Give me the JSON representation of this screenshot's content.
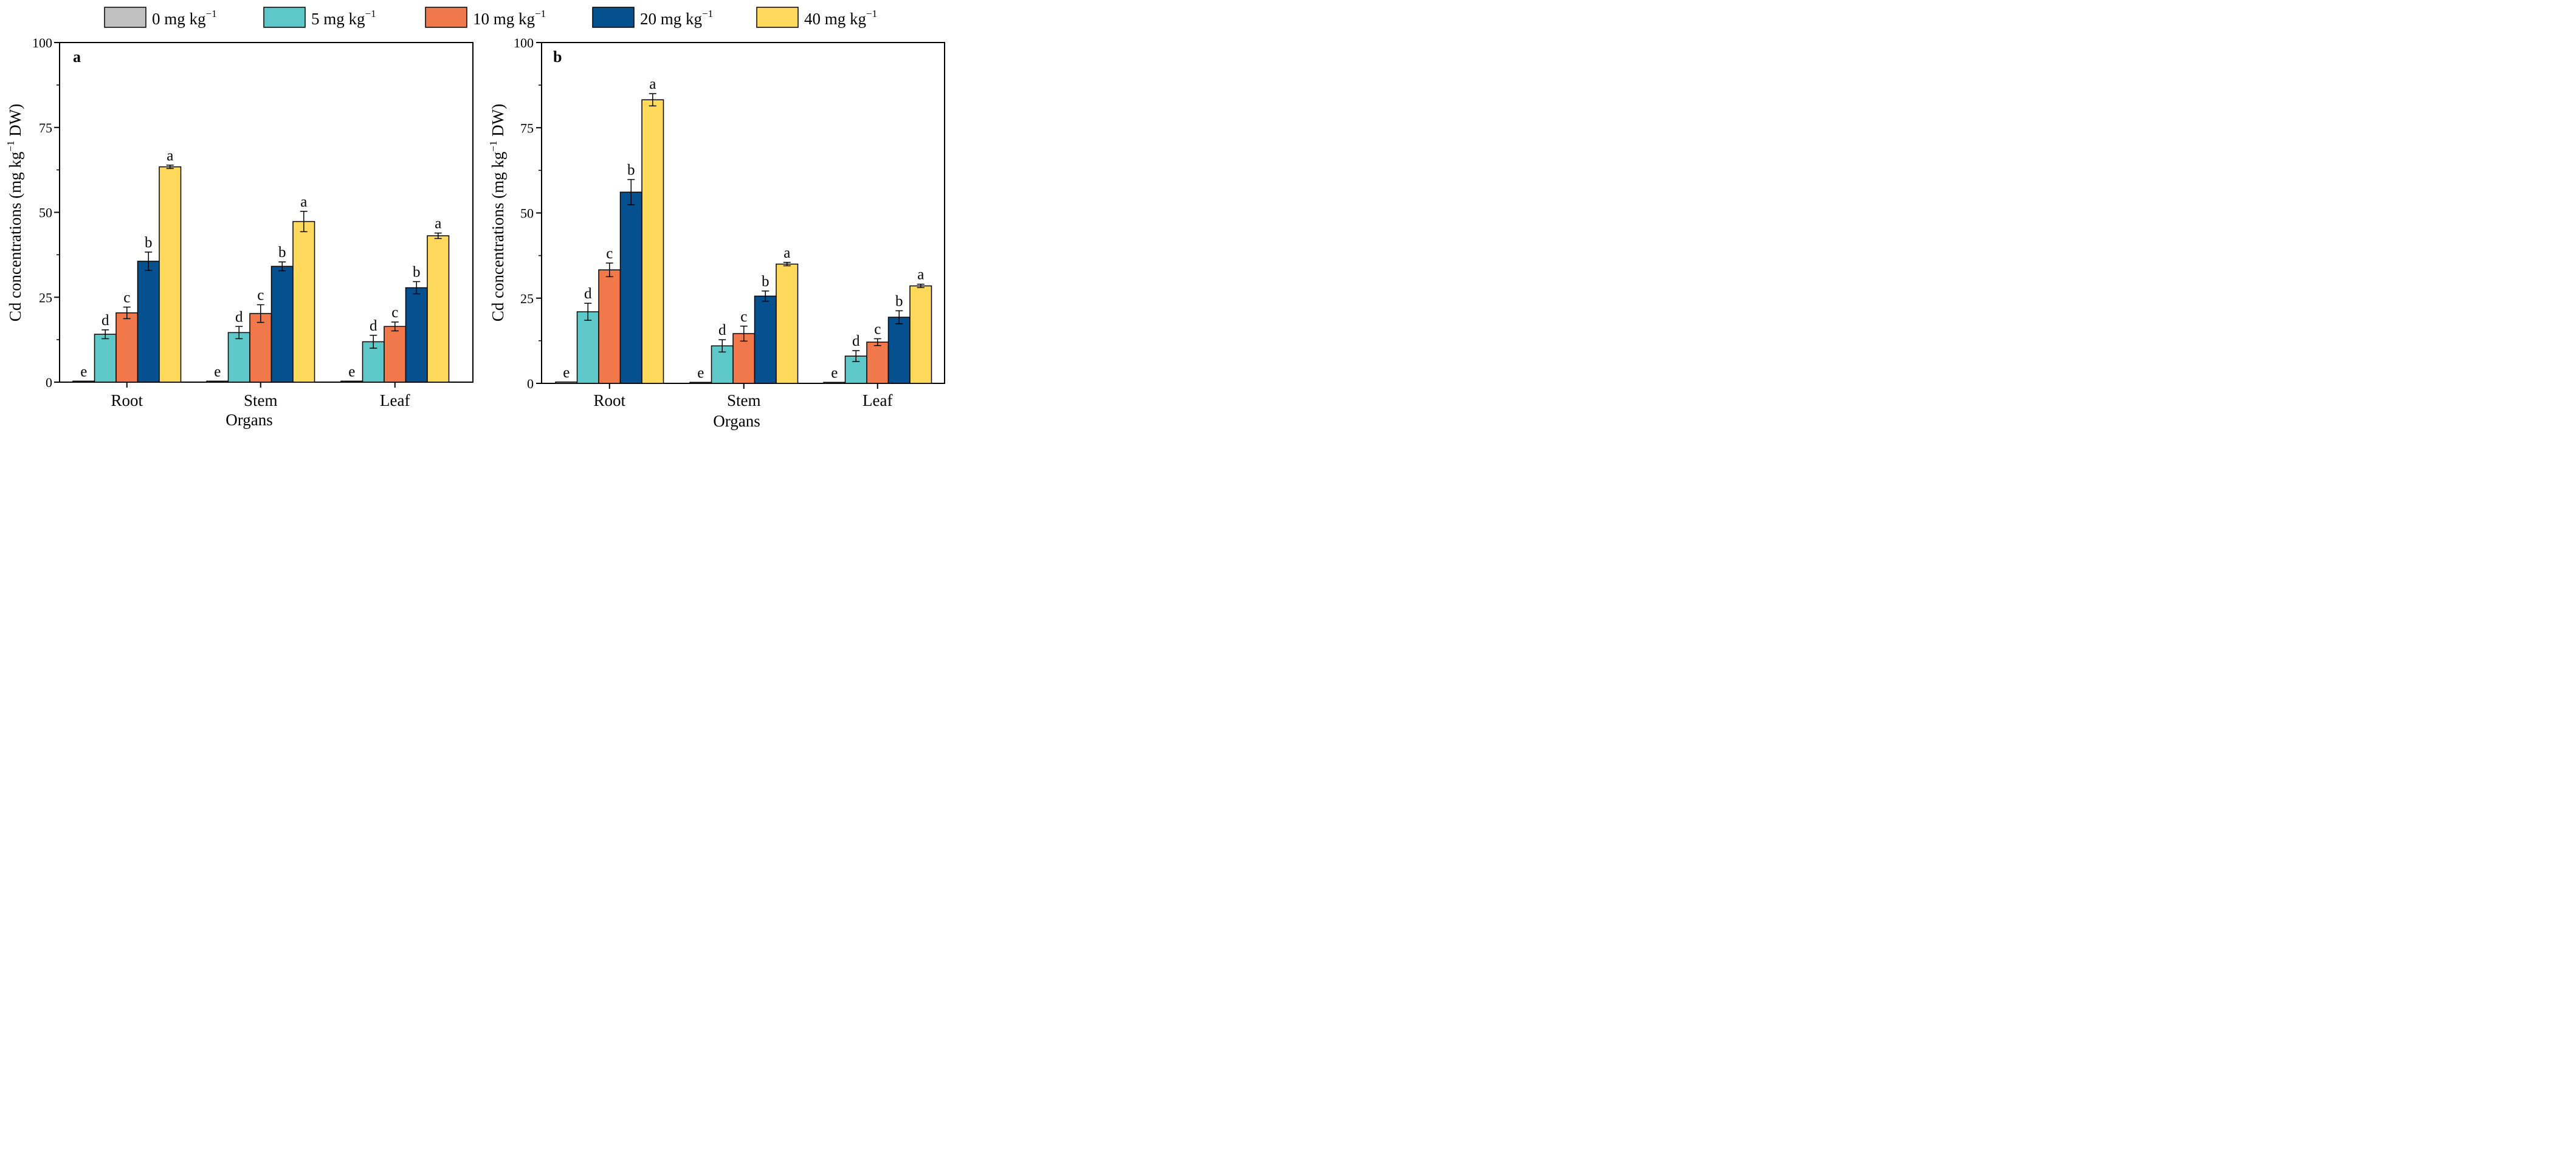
{
  "legend": {
    "items": [
      {
        "label": "0 mg kg",
        "sup": "−1",
        "color": "#c0c0c0"
      },
      {
        "label": "5 mg kg",
        "sup": "−1",
        "color": "#5ec8c8"
      },
      {
        "label": "10 mg kg",
        "sup": "−1",
        "color": "#f0784a"
      },
      {
        "label": "20 mg kg",
        "sup": "−1",
        "color": "#05508f"
      },
      {
        "label": "40 mg kg",
        "sup": "−1",
        "color": "#fed95b"
      }
    ]
  },
  "chart_data": [
    {
      "type": "bar",
      "panel": "a",
      "categories": [
        "Root",
        "Stem",
        "Leaf"
      ],
      "xlabel": "Organs",
      "ylabel_main": "Cd concentrations (mg kg",
      "ylabel_sup": "−1",
      "ylabel_tail": " DW)",
      "ylim": [
        0,
        100
      ],
      "yticks": [
        0,
        25,
        50,
        75,
        100
      ],
      "series": [
        {
          "name": "0 mg kg−1",
          "color": "#c0c0c0",
          "values": [
            0.3,
            0.3,
            0.3
          ],
          "errors": [
            0,
            0,
            0
          ],
          "letters": [
            "e",
            "e",
            "e"
          ]
        },
        {
          "name": "5 mg kg−1",
          "color": "#5ec8c8",
          "values": [
            14.1,
            14.6,
            11.9
          ],
          "errors": [
            1.3,
            1.8,
            1.9
          ],
          "letters": [
            "d",
            "d",
            "d"
          ]
        },
        {
          "name": "10 mg kg−1",
          "color": "#f0784a",
          "values": [
            20.4,
            20.2,
            16.4
          ],
          "errors": [
            1.7,
            2.6,
            1.3
          ],
          "letters": [
            "c",
            "c",
            "c"
          ]
        },
        {
          "name": "20 mg kg−1",
          "color": "#05508f",
          "values": [
            35.6,
            34.1,
            27.8
          ],
          "errors": [
            2.7,
            1.3,
            1.8
          ],
          "letters": [
            "b",
            "b",
            "b"
          ]
        },
        {
          "name": "40 mg kg−1",
          "color": "#fed95b",
          "values": [
            63.4,
            47.3,
            43.1
          ],
          "errors": [
            0.5,
            3.0,
            0.8
          ],
          "letters": [
            "a",
            "a",
            "a"
          ]
        }
      ]
    },
    {
      "type": "bar",
      "panel": "b",
      "categories": [
        "Root",
        "Stem",
        "Leaf"
      ],
      "xlabel": "Organs",
      "ylabel_main": "Cd concentrations (mg kg",
      "ylabel_sup": "−1",
      "ylabel_tail": " DW)",
      "ylim": [
        0,
        100
      ],
      "yticks": [
        0,
        25,
        50,
        75,
        100
      ],
      "series": [
        {
          "name": "0 mg kg−1",
          "color": "#c0c0c0",
          "values": [
            0.4,
            0.3,
            0.3
          ],
          "errors": [
            0,
            0,
            0
          ],
          "letters": [
            "e",
            "e",
            "e"
          ]
        },
        {
          "name": "5 mg kg−1",
          "color": "#5ec8c8",
          "values": [
            21.0,
            11.0,
            8.0
          ],
          "errors": [
            2.5,
            1.8,
            1.6
          ],
          "letters": [
            "d",
            "d",
            "d"
          ]
        },
        {
          "name": "10 mg kg−1",
          "color": "#f0784a",
          "values": [
            33.3,
            14.6,
            12.1
          ],
          "errors": [
            2.0,
            2.2,
            1.0
          ],
          "letters": [
            "c",
            "c",
            "c"
          ]
        },
        {
          "name": "20 mg kg−1",
          "color": "#05508f",
          "values": [
            56.1,
            25.6,
            19.4
          ],
          "errors": [
            3.7,
            1.5,
            1.9
          ],
          "letters": [
            "b",
            "b",
            "b"
          ]
        },
        {
          "name": "40 mg kg−1",
          "color": "#fed95b",
          "values": [
            83.2,
            35.0,
            28.6
          ],
          "errors": [
            1.8,
            0.5,
            0.5
          ],
          "letters": [
            "a",
            "a",
            "a"
          ]
        }
      ]
    }
  ]
}
